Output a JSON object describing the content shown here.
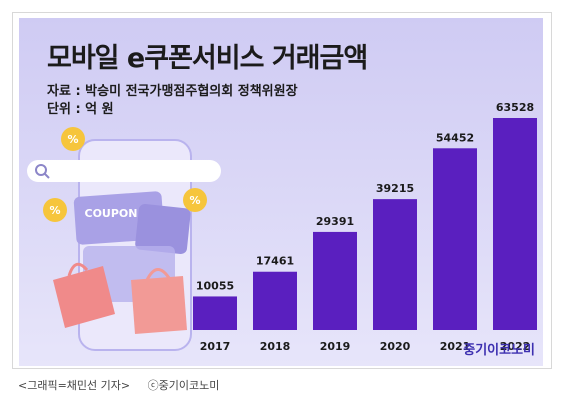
{
  "title": "모바일 e쿠폰서비스 거래금액",
  "source": "자료 : 박승미 전국가맹점주협의회 정책위원장",
  "unit": "단위 : 억 원",
  "coupon_text": "COUPON",
  "logo": "중기이코노미",
  "caption_left": "<그래픽=채민선 기자>",
  "caption_right": "ⓒ중기이코노미",
  "colors": {
    "bar": "#5a1fbf",
    "background": "#d6d3f5"
  },
  "chart_data": {
    "type": "bar",
    "categories": [
      "2017",
      "2018",
      "2019",
      "2020",
      "2021",
      "2022"
    ],
    "values": [
      10055,
      17461,
      29391,
      39215,
      54452,
      63528
    ],
    "title": "모바일 e쿠폰서비스 거래금액",
    "xlabel": "",
    "ylabel": "",
    "unit": "억 원",
    "ylim": [
      0,
      63528
    ],
    "grid": false,
    "legend": "none"
  }
}
